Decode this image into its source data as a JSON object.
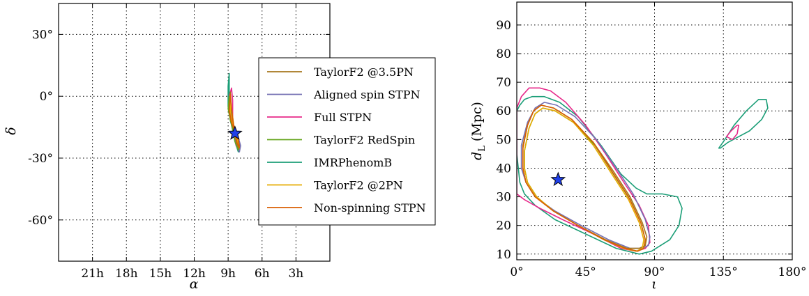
{
  "chart_data": [
    {
      "type": "line",
      "panel": "sky-localization",
      "xlabel": "α",
      "ylabel": "δ",
      "x_unit": "hours (right ascension, decreasing to the right)",
      "y_unit": "degrees",
      "xlim": [
        24,
        0
      ],
      "ylim": [
        -80,
        45
      ],
      "x_ticks": [
        21,
        18,
        15,
        12,
        9,
        6,
        3
      ],
      "x_tick_labels": [
        "21h",
        "18h",
        "15h",
        "12h",
        "9h",
        "6h",
        "3h"
      ],
      "y_ticks": [
        30,
        0,
        -30,
        -60
      ],
      "y_tick_labels": [
        "30°",
        "0°",
        "-30°",
        "-60°"
      ],
      "grid": "dotted",
      "legend": {
        "placement": "right",
        "entries": [
          {
            "name": "TaylorF2 @3.5PN",
            "color": "#a6761d"
          },
          {
            "name": "Aligned spin STPN",
            "color": "#7570b3"
          },
          {
            "name": "Full STPN",
            "color": "#e7298a"
          },
          {
            "name": "TaylorF2 RedSpin",
            "color": "#66a61e"
          },
          {
            "name": "IMRPhenomB",
            "color": "#1b9e77"
          },
          {
            "name": "TaylorF2 @2PN",
            "color": "#e6ab02"
          },
          {
            "name": "Non-spinning STPN",
            "color": "#d95f02"
          }
        ]
      },
      "injection_marker": {
        "x": 8.4,
        "y": -18
      },
      "series": [
        {
          "name": "IMRPhenomB",
          "color": "#1b9e77",
          "x": [
            8.9,
            9.0,
            9.0,
            8.8,
            8.6,
            8.3,
            8.0,
            8.1,
            8.4,
            8.6,
            8.8,
            8.9,
            8.9
          ],
          "y": [
            11,
            5,
            -5,
            -12,
            -16,
            -20,
            -24,
            -27,
            -22,
            -16,
            -8,
            0,
            11
          ]
        },
        {
          "name": "Full STPN",
          "color": "#e7298a",
          "x": [
            8.7,
            8.9,
            8.9,
            8.6,
            8.3,
            8.1,
            8.0,
            8.2,
            8.5,
            8.6,
            8.6,
            8.7
          ],
          "y": [
            4,
            0,
            -8,
            -14,
            -18,
            -22,
            -26,
            -25,
            -18,
            -10,
            -2,
            4
          ]
        },
        {
          "name": "TaylorF2 @3.5PN",
          "color": "#a6761d",
          "x": [
            8.8,
            8.9,
            8.8,
            8.5,
            8.2,
            8.0,
            8.0,
            8.3,
            8.6,
            8.8,
            8.8
          ],
          "y": [
            2,
            -4,
            -10,
            -15,
            -19,
            -23,
            -26,
            -23,
            -15,
            -6,
            2
          ]
        },
        {
          "name": "Aligned spin STPN",
          "color": "#7570b3",
          "x": [
            8.8,
            8.9,
            8.8,
            8.4,
            8.1,
            7.9,
            8.0,
            8.3,
            8.6,
            8.7,
            8.8
          ],
          "y": [
            1,
            -5,
            -11,
            -16,
            -20,
            -24,
            -27,
            -24,
            -16,
            -7,
            1
          ]
        },
        {
          "name": "TaylorF2 RedSpin",
          "color": "#66a61e",
          "x": [
            8.9,
            9.0,
            8.8,
            8.5,
            8.2,
            8.0,
            8.1,
            8.4,
            8.7,
            8.8,
            8.9
          ],
          "y": [
            0,
            -6,
            -12,
            -16,
            -20,
            -24,
            -26,
            -22,
            -14,
            -6,
            0
          ]
        },
        {
          "name": "TaylorF2 @2PN",
          "color": "#e6ab02",
          "x": [
            8.8,
            8.8,
            8.6,
            8.3,
            8.1,
            8.0,
            8.2,
            8.5,
            8.7,
            8.8
          ],
          "y": [
            -1,
            -8,
            -14,
            -18,
            -22,
            -25,
            -22,
            -14,
            -6,
            -1
          ]
        },
        {
          "name": "Non-spinning STPN",
          "color": "#d95f02",
          "x": [
            8.8,
            8.9,
            8.7,
            8.4,
            8.1,
            8.0,
            8.2,
            8.5,
            8.7,
            8.8
          ],
          "y": [
            1,
            -7,
            -13,
            -17,
            -21,
            -25,
            -23,
            -15,
            -6,
            1
          ]
        }
      ]
    },
    {
      "type": "line",
      "panel": "distance-inclination",
      "xlabel": "ι",
      "ylabel": "d_L (Mpc)",
      "xlim": [
        0,
        180
      ],
      "ylim": [
        8,
        98
      ],
      "x_ticks": [
        0,
        45,
        90,
        135,
        180
      ],
      "x_tick_labels": [
        "0°",
        "45°",
        "90°",
        "135°",
        "180°"
      ],
      "y_ticks": [
        10,
        20,
        30,
        40,
        50,
        60,
        70,
        80,
        90
      ],
      "y_tick_labels": [
        "10",
        "20",
        "30",
        "40",
        "50",
        "60",
        "70",
        "80",
        "90"
      ],
      "grid": "dotted",
      "injection_marker": {
        "x": 27,
        "y": 36
      },
      "series": [
        {
          "name": "IMRPhenomB",
          "color": "#1b9e77",
          "x": [
            0,
            2,
            5,
            10,
            18,
            28,
            40,
            55,
            68,
            78,
            85,
            87,
            88,
            95,
            105,
            108,
            106,
            100,
            88,
            80,
            65,
            45,
            25,
            12,
            5,
            2,
            0
          ],
          "y": [
            60,
            62,
            64,
            65,
            65,
            63,
            58,
            48,
            38,
            33,
            31,
            31,
            31,
            31,
            30,
            26,
            20,
            15,
            11,
            10,
            12,
            17,
            22,
            27,
            31,
            35,
            45
          ]
        },
        {
          "name": "IMRPhenomB",
          "color": "#1b9e77",
          "x": [
            132,
            136,
            142,
            150,
            158,
            163,
            164,
            160,
            152,
            145,
            138,
            133,
            132
          ],
          "y": [
            47,
            50,
            55,
            60,
            64,
            64,
            61,
            57,
            53,
            51,
            49,
            47,
            47
          ]
        },
        {
          "name": "Full STPN",
          "color": "#e7298a",
          "x": [
            0,
            3,
            8,
            15,
            22,
            32,
            45,
            58,
            70,
            80,
            86,
            87,
            84,
            78,
            68,
            50,
            30,
            15,
            5,
            0
          ],
          "y": [
            61,
            65,
            68,
            68,
            67,
            63,
            55,
            45,
            35,
            27,
            20,
            14,
            12,
            11,
            12,
            17,
            22,
            26,
            29,
            31
          ]
        },
        {
          "name": "Full STPN",
          "color": "#e7298a",
          "x": [
            137,
            140,
            144,
            145,
            144,
            141,
            137,
            137
          ],
          "y": [
            51,
            53,
            55,
            55,
            52,
            50,
            51,
            51
          ]
        },
        {
          "name": "Aligned spin STPN",
          "color": "#7570b3",
          "x": [
            3,
            7,
            12,
            18,
            26,
            38,
            52,
            65,
            76,
            84,
            87,
            86,
            82,
            74,
            60,
            42,
            25,
            12,
            6,
            3,
            3
          ],
          "y": [
            48,
            56,
            61,
            63,
            62,
            58,
            50,
            40,
            31,
            22,
            16,
            13,
            12,
            12,
            15,
            20,
            25,
            30,
            35,
            40,
            48
          ]
        },
        {
          "name": "TaylorF2 @3.5PN",
          "color": "#a6761d",
          "x": [
            4,
            7,
            11,
            16,
            24,
            36,
            50,
            63,
            74,
            82,
            85,
            84,
            80,
            72,
            58,
            40,
            24,
            12,
            6,
            4,
            4
          ],
          "y": [
            48,
            55,
            60,
            62,
            61,
            57,
            49,
            39,
            30,
            21,
            16,
            13,
            12,
            12,
            15,
            20,
            25,
            30,
            35,
            40,
            48
          ]
        },
        {
          "name": "TaylorF2 RedSpin",
          "color": "#66a61e",
          "x": [
            5,
            8,
            12,
            17,
            25,
            37,
            51,
            63,
            74,
            81,
            84,
            83,
            79,
            71,
            57,
            40,
            24,
            13,
            7,
            5,
            5
          ],
          "y": [
            46,
            54,
            59,
            61,
            60,
            56,
            48,
            38,
            29,
            21,
            15,
            12,
            11,
            12,
            15,
            20,
            25,
            30,
            35,
            40,
            46
          ]
        },
        {
          "name": "TaylorF2 @2PN",
          "color": "#e6ab02",
          "x": [
            5,
            8,
            12,
            17,
            25,
            37,
            50,
            62,
            73,
            80,
            83,
            82,
            78,
            70,
            57,
            40,
            24,
            13,
            7,
            5,
            5
          ],
          "y": [
            46,
            54,
            59,
            61,
            60,
            56,
            48,
            38,
            29,
            21,
            15,
            12,
            11,
            12,
            15,
            20,
            25,
            30,
            35,
            40,
            46
          ]
        },
        {
          "name": "Non-spinning STPN",
          "color": "#d95f02",
          "x": [
            4,
            7,
            11,
            16,
            24,
            36,
            50,
            62,
            73,
            81,
            84,
            83,
            79,
            71,
            57,
            40,
            24,
            12,
            6,
            4,
            4
          ],
          "y": [
            47,
            55,
            60,
            62,
            61,
            57,
            49,
            39,
            30,
            21,
            15,
            12,
            11,
            12,
            15,
            20,
            25,
            30,
            35,
            40,
            47
          ]
        }
      ]
    }
  ]
}
